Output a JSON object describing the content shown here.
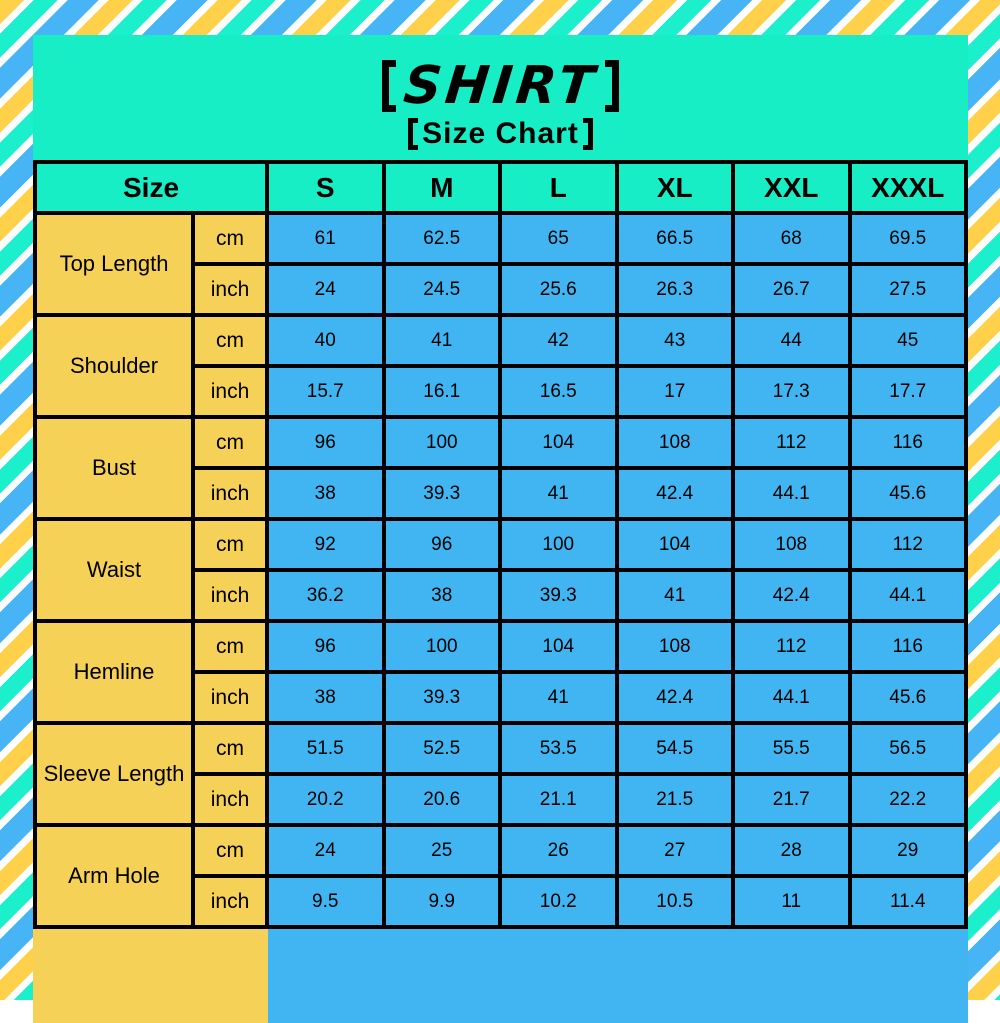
{
  "header": {
    "title": "SHIRT",
    "subtitle": "Size Chart",
    "bracket_left": "【",
    "bracket_right": "】"
  },
  "table": {
    "size_header": "Size",
    "columns": [
      "S",
      "M",
      "L",
      "XL",
      "XXL",
      "XXXL"
    ],
    "unit_cm": "cm",
    "unit_inch": "inch",
    "rows": [
      {
        "label": "Top Length",
        "cm": [
          "61",
          "62.5",
          "65",
          "66.5",
          "68",
          "69.5"
        ],
        "inch": [
          "24",
          "24.5",
          "25.6",
          "26.3",
          "26.7",
          "27.5"
        ]
      },
      {
        "label": "Shoulder",
        "cm": [
          "40",
          "41",
          "42",
          "43",
          "44",
          "45"
        ],
        "inch": [
          "15.7",
          "16.1",
          "16.5",
          "17",
          "17.3",
          "17.7"
        ]
      },
      {
        "label": "Bust",
        "cm": [
          "96",
          "100",
          "104",
          "108",
          "112",
          "116"
        ],
        "inch": [
          "38",
          "39.3",
          "41",
          "42.4",
          "44.1",
          "45.6"
        ]
      },
      {
        "label": "Waist",
        "cm": [
          "92",
          "96",
          "100",
          "104",
          "108",
          "112"
        ],
        "inch": [
          "36.2",
          "38",
          "39.3",
          "41",
          "42.4",
          "44.1"
        ]
      },
      {
        "label": "Hemline",
        "cm": [
          "96",
          "100",
          "104",
          "108",
          "112",
          "116"
        ],
        "inch": [
          "38",
          "39.3",
          "41",
          "42.4",
          "44.1",
          "45.6"
        ]
      },
      {
        "label": "Sleeve Length",
        "cm": [
          "51.5",
          "52.5",
          "53.5",
          "54.5",
          "55.5",
          "56.5"
        ],
        "inch": [
          "20.2",
          "20.6",
          "21.1",
          "21.5",
          "21.7",
          "22.2"
        ]
      },
      {
        "label": "Arm Hole",
        "cm": [
          "24",
          "25",
          "26",
          "27",
          "28",
          "29"
        ],
        "inch": [
          "9.5",
          "9.9",
          "10.2",
          "10.5",
          "11",
          "11.4"
        ]
      }
    ]
  },
  "colors": {
    "background_turquoise": "#18EEC6",
    "cell_yellow": "#F6D158",
    "cell_blue": "#41B5F2",
    "stripe_yellow": "#FFD14A",
    "stripe_blue": "#47B4F5",
    "stripe_turquoise": "#1BEFCB",
    "border_black": "#000000"
  }
}
